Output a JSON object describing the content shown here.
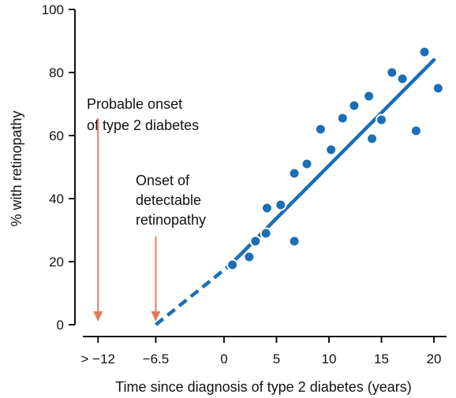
{
  "chart_data": {
    "type": "scatter",
    "title": "",
    "xlabel": "Time since diagnosis of type 2 diabetes (years)",
    "ylabel": "% with retinopathy",
    "xlim": [
      -14.2,
      21.2
    ],
    "ylim": [
      0,
      100
    ],
    "grid": false,
    "x_ticks": [
      {
        "value": -12,
        "label": "> −12"
      },
      {
        "value": -6.5,
        "label": "−6.5"
      },
      {
        "value": 0,
        "label": "0"
      },
      {
        "value": 5,
        "label": "5"
      },
      {
        "value": 10,
        "label": "10"
      },
      {
        "value": 15,
        "label": "15"
      },
      {
        "value": 20,
        "label": "20"
      }
    ],
    "y_ticks": [
      0,
      20,
      40,
      60,
      80,
      100
    ],
    "colors": {
      "points": "#1a6fb5",
      "trend": "#1a6fb5",
      "arrows": "#e07a5f"
    },
    "points": [
      {
        "x": 0.8,
        "y": 19
      },
      {
        "x": 2.4,
        "y": 21.5
      },
      {
        "x": 3,
        "y": 26.5
      },
      {
        "x": 4,
        "y": 29
      },
      {
        "x": 4.1,
        "y": 37
      },
      {
        "x": 5.4,
        "y": 38
      },
      {
        "x": 6.7,
        "y": 26.5
      },
      {
        "x": 6.7,
        "y": 48
      },
      {
        "x": 7.9,
        "y": 51
      },
      {
        "x": 9.2,
        "y": 62
      },
      {
        "x": 10.2,
        "y": 55.5
      },
      {
        "x": 11.3,
        "y": 65.5
      },
      {
        "x": 12.4,
        "y": 69.5
      },
      {
        "x": 13.8,
        "y": 72.5
      },
      {
        "x": 14.1,
        "y": 59
      },
      {
        "x": 15,
        "y": 65
      },
      {
        "x": 16,
        "y": 80
      },
      {
        "x": 17,
        "y": 78
      },
      {
        "x": 18.3,
        "y": 61.5
      },
      {
        "x": 19.1,
        "y": 86.5
      },
      {
        "x": 20.4,
        "y": 75
      }
    ],
    "trend": {
      "dashed": [
        {
          "x": -6.5,
          "y": 0
        },
        {
          "x": 0.6,
          "y": 19
        }
      ],
      "solid": [
        {
          "x": 0.6,
          "y": 19
        },
        {
          "x": 20,
          "y": 84
        }
      ]
    },
    "annotations": [
      {
        "lines": [
          "Probable onset",
          "of type 2 diabetes"
        ],
        "arrow_x": -12,
        "arrow_from_y": 65.5,
        "arrow_to_y": 1.5
      },
      {
        "lines": [
          "Onset of",
          "detectable",
          "retinopathy"
        ],
        "arrow_x": -6.5,
        "arrow_from_y": 28,
        "arrow_to_y": 1.5
      }
    ]
  }
}
